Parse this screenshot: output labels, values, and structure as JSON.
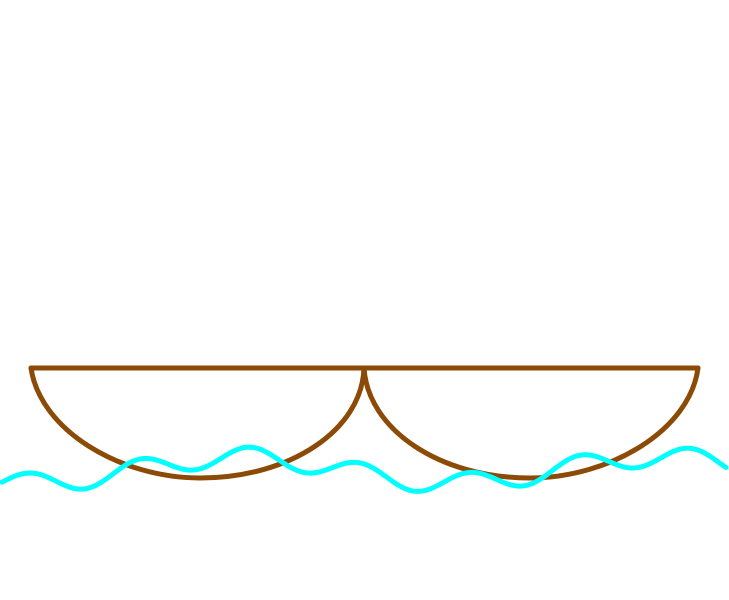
{
  "scene": {
    "background_color": "#ffffff",
    "elements": [
      {
        "name": "boat-hull",
        "type": "twin-semicircle-hull",
        "stroke_color": "#8B4A06"
      },
      {
        "name": "water-wave",
        "type": "wave-line",
        "stroke_color": "#00FFFF"
      }
    ]
  }
}
